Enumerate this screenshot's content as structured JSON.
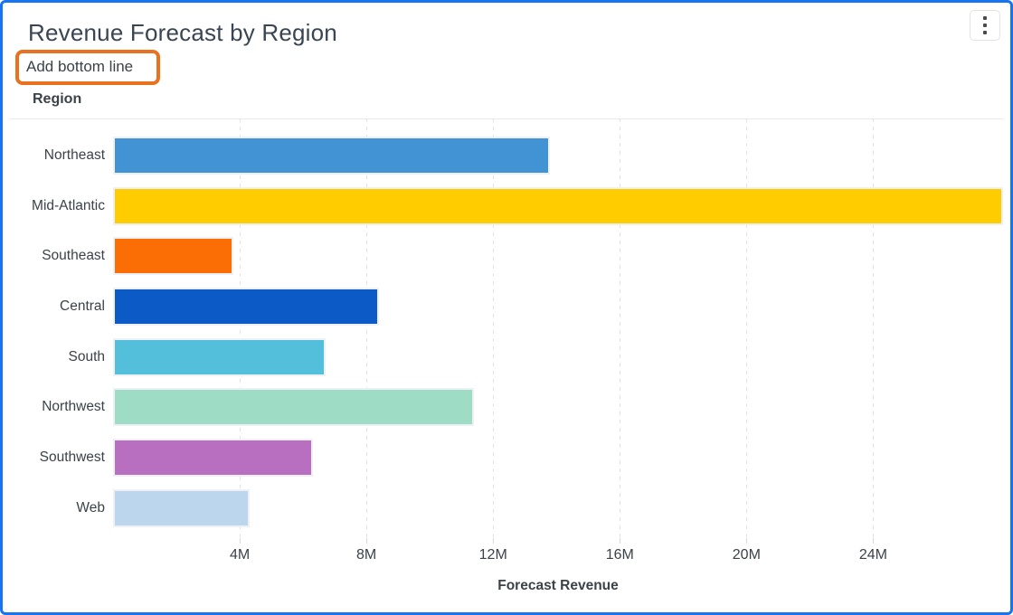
{
  "panel": {
    "title": "Revenue Forecast by Region",
    "action_label": "Add bottom line",
    "region_axis_label": "Region",
    "x_axis_label": "Forecast Revenue",
    "menu_icon": "kebab-menu-icon"
  },
  "colors": {
    "panel_border": "#1673F1",
    "annotation_highlight": "#E8721F",
    "text": "#3B4248",
    "title_text": "#3A4553",
    "gridline": "#E2E2E6",
    "bar_outline": "#EEF0F5"
  },
  "chart_data": {
    "type": "bar",
    "orientation": "horizontal",
    "title": "Revenue Forecast by Region",
    "xlabel": "Forecast Revenue",
    "ylabel": "Region",
    "unit": "M",
    "categories": [
      "Northeast",
      "Mid-Atlantic",
      "Southeast",
      "Central",
      "South",
      "Northwest",
      "Southwest",
      "Web"
    ],
    "values": [
      13.8,
      28.1,
      3.8,
      8.4,
      6.7,
      11.4,
      6.3,
      4.3
    ],
    "bar_colors": [
      "#4193D4",
      "#FFCC00",
      "#FA6E05",
      "#0B5AC6",
      "#53BFDB",
      "#9EDCC6",
      "#B96FC0",
      "#BCD6EE"
    ],
    "x_tick_labels": [
      "4M",
      "8M",
      "12M",
      "16M",
      "20M",
      "24M"
    ],
    "x_tick_values": [
      4,
      8,
      12,
      16,
      20,
      24
    ],
    "xlim": [
      0,
      28.1
    ],
    "grid": "vertical-dashed",
    "legend": "none"
  }
}
